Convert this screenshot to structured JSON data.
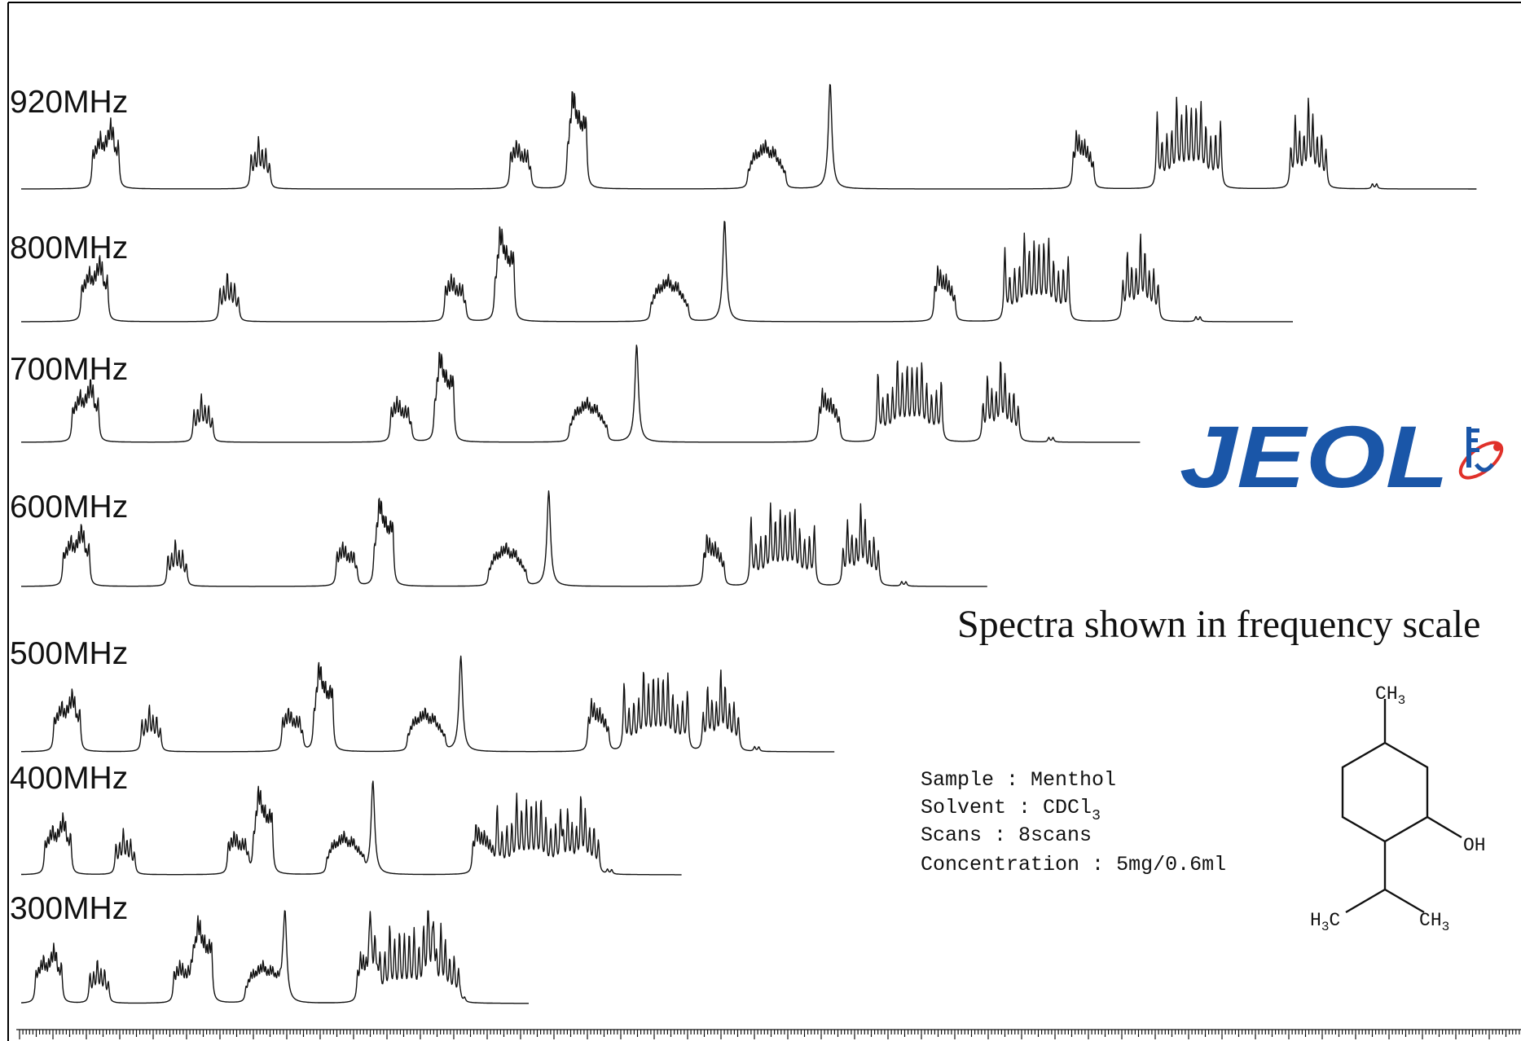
{
  "colors": {
    "brand": "#1a56a8",
    "accent": "#e0312a",
    "ink": "#111111"
  },
  "logo": {
    "name": "jeol-logo",
    "text": "JEOL"
  },
  "caption": "Spectra shown in frequency scale",
  "sample_info": [
    {
      "label": "Sample",
      "value": "Menthol"
    },
    {
      "label": "Solvent",
      "value": "CDCl",
      "sub": "3"
    },
    {
      "label": "Scans",
      "value": "8scans"
    },
    {
      "label": "Concentration",
      "value": "5mg/0.6ml"
    }
  ],
  "molecule": {
    "name": "Menthol",
    "top_group": "CH3",
    "right_group": "OH",
    "left_group": "H3C",
    "bottom_right_group": "CH3"
  },
  "chart_data": {
    "type": "line",
    "title": "",
    "x_axis": {
      "ticks_visible": true,
      "tick_labels": []
    },
    "series": [
      {
        "name": "920MHz",
        "spectrometer_MHz": 920
      },
      {
        "name": "800MHz",
        "spectrometer_MHz": 800
      },
      {
        "name": "700MHz",
        "spectrometer_MHz": 700
      },
      {
        "name": "600MHz",
        "spectrometer_MHz": 600
      },
      {
        "name": "500MHz",
        "spectrometer_MHz": 500
      },
      {
        "name": "400MHz",
        "spectrometer_MHz": 400
      },
      {
        "name": "300MHz",
        "spectrometer_MHz": 300
      }
    ]
  }
}
